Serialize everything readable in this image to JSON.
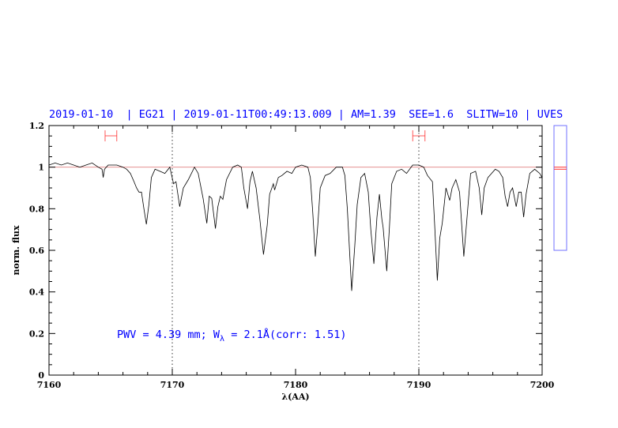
{
  "chart_data": {
    "type": "line",
    "title": "2019-01-10  | EG21 | 2019-01-11T00:49:13.009 | AM=1.39  SEE=1.6  SLITW=10 | UVES",
    "xlabel": "λ(AA)",
    "ylabel": "norm. flux",
    "xlim": [
      7160,
      7200
    ],
    "ylim": [
      0,
      1.2
    ],
    "xticks": [
      "7160",
      "7170",
      "7180",
      "7190",
      "7200"
    ],
    "yticks": [
      "0",
      "0.2",
      "0.4",
      "0.6",
      "0.8",
      "1",
      "1.2"
    ],
    "xminor_step": 2,
    "yminor_step": 0.05,
    "reference_line_y": 1,
    "dotted_vlines_x": [
      7170,
      7190
    ],
    "interval_markers": [
      [
        7164.55,
        7165.5
      ],
      [
        7189.5,
        7190.5
      ]
    ],
    "annotation": {
      "pre": "PWV = 4.39 mm; W",
      "sub": "λ",
      "post": " = 2.1Å(corr: 1.51)"
    },
    "side_gauge": {
      "range": [
        0.6,
        1.2
      ],
      "values": [
        1.0,
        0.99
      ]
    },
    "colors": {
      "spectrum": "#000000",
      "text": "#0000ff",
      "markers": "#ff3030",
      "gauge": "#7070ff",
      "reference": "#e08080"
    },
    "series": [
      {
        "x": [
          7160.0,
          7160.5,
          7161.0,
          7161.5,
          7162.0,
          7162.5,
          7163.0,
          7163.5,
          7164.0,
          7164.3,
          7164.4,
          7164.5,
          7164.8,
          7165.5,
          7166.0,
          7166.3,
          7166.6,
          7166.9,
          7167.1,
          7167.3,
          7167.5,
          7167.7,
          7167.9,
          7168.1,
          7168.3,
          7168.6,
          7169.0,
          7169.4,
          7169.8,
          7170.1,
          7170.3,
          7170.6,
          7170.9,
          7171.3,
          7171.8,
          7172.1,
          7172.5,
          7172.8,
          7173.0,
          7173.2,
          7173.5,
          7173.7,
          7173.9,
          7174.1,
          7174.4,
          7174.9,
          7175.3,
          7175.6,
          7175.8,
          7176.1,
          7176.3,
          7176.5,
          7176.8,
          7177.1,
          7177.4,
          7177.7,
          7177.9,
          7178.2,
          7178.3,
          7178.6,
          7178.9,
          7179.3,
          7179.7,
          7180.0,
          7180.5,
          7181.0,
          7181.2,
          7181.4,
          7181.6,
          7181.8,
          7182.0,
          7182.4,
          7182.8,
          7183.3,
          7183.8,
          7184.0,
          7184.2,
          7184.55,
          7184.8,
          7185.0,
          7185.3,
          7185.6,
          7185.9,
          7186.1,
          7186.35,
          7186.6,
          7186.8,
          7187.0,
          7187.1,
          7187.4,
          7187.6,
          7187.8,
          7188.2,
          7188.6,
          7189.0,
          7189.5,
          7190.0,
          7190.4,
          7190.7,
          7191.1,
          7191.3,
          7191.5,
          7191.7,
          7191.9,
          7192.2,
          7192.5,
          7192.7,
          7193.0,
          7193.3,
          7193.65,
          7193.9,
          7194.2,
          7194.6,
          7194.9,
          7195.1,
          7195.3,
          7195.6,
          7195.9,
          7196.2,
          7196.5,
          7196.8,
          7197.0,
          7197.2,
          7197.4,
          7197.6,
          7197.9,
          7198.1,
          7198.3,
          7198.5,
          7198.7,
          7199.0,
          7199.4,
          7199.8,
          7200.0
        ],
        "y": [
          1.01,
          1.02,
          1.01,
          1.02,
          1.01,
          1.0,
          1.01,
          1.02,
          1.0,
          0.99,
          0.95,
          0.99,
          1.01,
          1.01,
          1.0,
          0.99,
          0.97,
          0.93,
          0.9,
          0.88,
          0.88,
          0.8,
          0.725,
          0.82,
          0.95,
          0.99,
          0.98,
          0.97,
          1.0,
          0.92,
          0.93,
          0.81,
          0.9,
          0.94,
          1.0,
          0.97,
          0.85,
          0.73,
          0.86,
          0.85,
          0.705,
          0.81,
          0.86,
          0.845,
          0.94,
          1.0,
          1.01,
          1.0,
          0.9,
          0.8,
          0.93,
          0.98,
          0.9,
          0.75,
          0.58,
          0.72,
          0.87,
          0.92,
          0.89,
          0.95,
          0.96,
          0.98,
          0.97,
          1.0,
          1.01,
          1.0,
          0.95,
          0.78,
          0.57,
          0.72,
          0.9,
          0.96,
          0.97,
          1.0,
          1.0,
          0.96,
          0.8,
          0.405,
          0.62,
          0.82,
          0.95,
          0.97,
          0.88,
          0.7,
          0.535,
          0.76,
          0.87,
          0.75,
          0.71,
          0.5,
          0.7,
          0.92,
          0.98,
          0.99,
          0.97,
          1.01,
          1.01,
          1.0,
          0.96,
          0.93,
          0.7,
          0.455,
          0.66,
          0.73,
          0.9,
          0.84,
          0.9,
          0.94,
          0.88,
          0.57,
          0.75,
          0.97,
          0.98,
          0.9,
          0.77,
          0.9,
          0.95,
          0.97,
          0.99,
          0.98,
          0.95,
          0.86,
          0.81,
          0.88,
          0.9,
          0.81,
          0.88,
          0.88,
          0.76,
          0.87,
          0.97,
          0.99,
          0.97,
          0.95
        ]
      }
    ]
  }
}
